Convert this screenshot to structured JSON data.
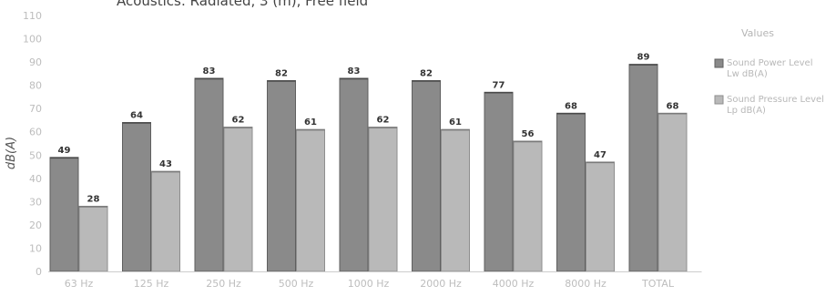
{
  "chart_data": {
    "type": "bar",
    "title": "Acoustics: Radiated, 3 (m), Free field",
    "ylabel": "dB(A)",
    "xlabel": "",
    "ylim": [
      0,
      110
    ],
    "y_ticks": [
      0,
      10,
      20,
      30,
      40,
      50,
      60,
      70,
      80,
      90,
      100,
      110
    ],
    "grid": false,
    "categories": [
      "63 Hz",
      "125 Hz",
      "250 Hz",
      "500 Hz",
      "1000 Hz",
      "2000 Hz",
      "4000 Hz",
      "8000 Hz",
      "TOTAL"
    ],
    "series": [
      {
        "name": "Sound Power Level Lw dB(A)",
        "values": [
          49,
          64,
          83,
          82,
          83,
          82,
          77,
          68,
          89
        ],
        "color": "#8a8a8a"
      },
      {
        "name": "Sound Pressure Level Lp dB(A)",
        "values": [
          28,
          43,
          62,
          61,
          62,
          61,
          56,
          47,
          68
        ],
        "color": "#b9b9b9"
      }
    ],
    "legend": {
      "title": "Values",
      "position": "right",
      "entries": [
        {
          "lines": [
            "Sound Power Level",
            "Lw dB(A)"
          ]
        },
        {
          "lines": [
            "Sound Pressure Level",
            "Lp dB(A)"
          ]
        }
      ]
    }
  }
}
